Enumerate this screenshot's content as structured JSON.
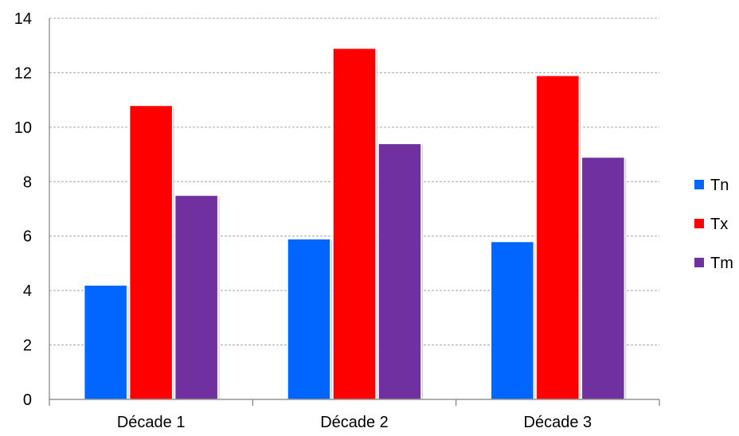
{
  "chart_data": {
    "type": "bar",
    "categories": [
      "Décade 1",
      "Décade 2",
      "Décade 3"
    ],
    "series": [
      {
        "name": "Tn",
        "values": [
          4.2,
          5.9,
          5.8
        ],
        "color": "#0066ff"
      },
      {
        "name": "Tx",
        "values": [
          10.8,
          12.9,
          11.9
        ],
        "color": "#ff0000"
      },
      {
        "name": "Tm",
        "values": [
          7.5,
          9.4,
          8.9
        ],
        "color": "#7030a0"
      }
    ],
    "ylim": [
      0,
      14
    ],
    "yticks": [
      "0",
      "2",
      "4",
      "6",
      "8",
      "10",
      "12",
      "14"
    ],
    "grid": true,
    "legend_position": "right"
  }
}
